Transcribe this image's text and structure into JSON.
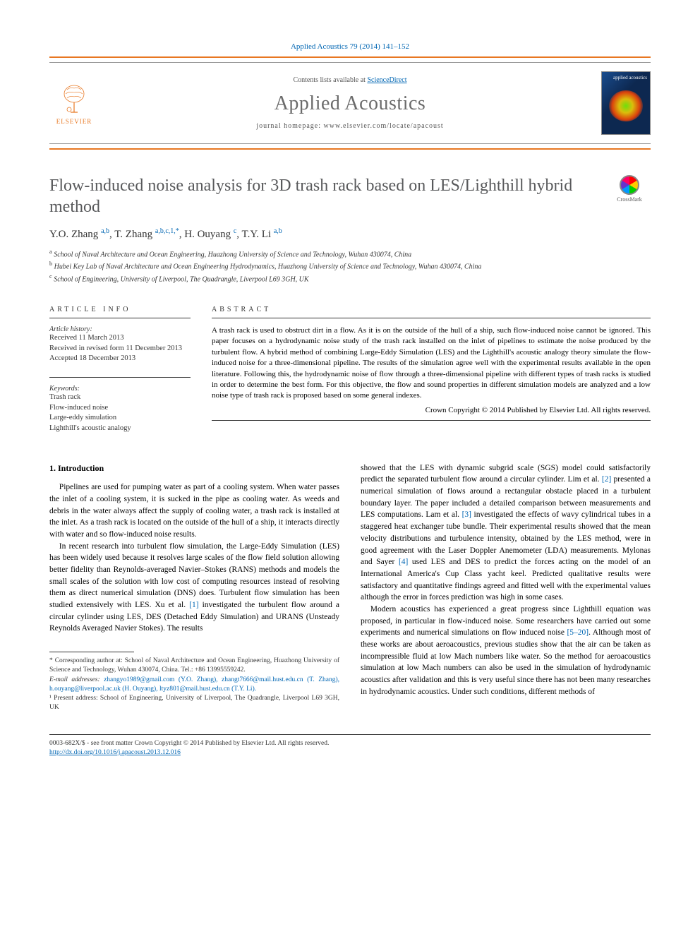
{
  "journal_ref": "Applied Acoustics 79 (2014) 141–152",
  "contents_line_prefix": "Contents lists available at ",
  "contents_line_link": "ScienceDirect",
  "journal_name": "Applied Acoustics",
  "homepage_line": "journal homepage: www.elsevier.com/locate/apacoust",
  "elsevier_label": "ELSEVIER",
  "cover_label": "applied acoustics",
  "crossmark_label": "CrossMark",
  "title": "Flow-induced noise analysis for 3D trash rack based on LES/Lighthill hybrid method",
  "authors_html": "Y.O. Zhang <sup>a,b</sup>, T. Zhang <sup>a,b,c,1,*</sup>, H. Ouyang <sup>c</sup>, T.Y. Li <sup>a,b</sup>",
  "affiliations": [
    {
      "sup": "a",
      "text": "School of Naval Architecture and Ocean Engineering, Huazhong University of Science and Technology, Wuhan 430074, China"
    },
    {
      "sup": "b",
      "text": "Hubei Key Lab of Naval Architecture and Ocean Engineering Hydrodynamics, Huazhong University of Science and Technology, Wuhan 430074, China"
    },
    {
      "sup": "c",
      "text": "School of Engineering, University of Liverpool, The Quadrangle, Liverpool L69 3GH, UK"
    }
  ],
  "info_head": "ARTICLE INFO",
  "abstract_head": "ABSTRACT",
  "history_label": "Article history:",
  "history": [
    "Received 11 March 2013",
    "Received in revised form 11 December 2013",
    "Accepted 18 December 2013"
  ],
  "keywords_label": "Keywords:",
  "keywords": [
    "Trash rack",
    "Flow-induced noise",
    "Large-eddy simulation",
    "Lighthill's acoustic analogy"
  ],
  "abstract": "A trash rack is used to obstruct dirt in a flow. As it is on the outside of the hull of a ship, such flow-induced noise cannot be ignored. This paper focuses on a hydrodynamic noise study of the trash rack installed on the inlet of pipelines to estimate the noise produced by the turbulent flow. A hybrid method of combining Large-Eddy Simulation (LES) and the Lighthill's acoustic analogy theory simulate the flow-induced noise for a three-dimensional pipeline. The results of the simulation agree well with the experimental results available in the open literature. Following this, the hydrodynamic noise of flow through a three-dimensional pipeline with different types of trash racks is studied in order to determine the best form. For this objective, the flow and sound properties in different simulation models are analyzed and a low noise type of trash rack is proposed based on some general indexes.",
  "copyright": "Crown Copyright © 2014 Published by Elsevier Ltd. All rights reserved.",
  "intro_heading": "1. Introduction",
  "left_paragraphs": [
    "Pipelines are used for pumping water as part of a cooling system. When water passes the inlet of a cooling system, it is sucked in the pipe as cooling water. As weeds and debris in the water always affect the supply of cooling water, a trash rack is installed at the inlet. As a trash rack is located on the outside of the hull of a ship, it interacts directly with water and so flow-induced noise results.",
    "In recent research into turbulent flow simulation, the Large-Eddy Simulation (LES) has been widely used because it resolves large scales of the flow field solution allowing better fidelity than Reynolds-averaged Navier–Stokes (RANS) methods and models the small scales of the solution with low cost of computing resources instead of resolving them as direct numerical simulation (DNS) does. Turbulent flow simulation has been studied extensively with LES. Xu et al. [1] investigated the turbulent flow around a circular cylinder using LES, DES (Detached Eddy Simulation) and URANS (Unsteady Reynolds Averaged Navier Stokes). The results"
  ],
  "right_paragraphs": [
    "showed that the LES with dynamic subgrid scale (SGS) model could satisfactorily predict the separated turbulent flow around a circular cylinder. Lim et al. [2] presented a numerical simulation of flows around a rectangular obstacle placed in a turbulent boundary layer. The paper included a detailed comparison between measurements and LES computations. Lam et al. [3] investigated the effects of wavy cylindrical tubes in a staggered heat exchanger tube bundle. Their experimental results showed that the mean velocity distributions and turbulence intensity, obtained by the LES method, were in good agreement with the Laser Doppler Anemometer (LDA) measurements. Mylonas and Sayer [4] used LES and DES to predict the forces acting on the model of an International America's Cup Class yacht keel. Predicted qualitative results were satisfactory and quantitative findings agreed and fitted well with the experimental values although the error in forces prediction was high in some cases.",
    "Modern acoustics has experienced a great progress since Lighthill equation was proposed, in particular in flow-induced noise. Some researchers have carried out some experiments and numerical simulations on flow induced noise [5–20]. Although most of these works are about aeroacoustics, previous studies show that the air can be taken as incompressible fluid at low Mach numbers like water. So the method for aeroacoustics simulation at low Mach numbers can also be used in the simulation of hydrodynamic acoustics after validation and this is very useful since there has not been many researches in hydrodynamic acoustics. Under such conditions, different methods of"
  ],
  "footnote_corresponding": "* Corresponding author at: School of Naval Architecture and Ocean Engineering, Huazhong University of Science and Technology, Wuhan 430074, China. Tel.: +86 13995559242.",
  "footnote_emails_label": "E-mail addresses:",
  "footnote_emails": " zhangyo1989@gmail.com (Y.O. Zhang), zhangt7666@mail.hust.edu.cn (T. Zhang), h.ouyang@liverpool.ac.uk (H. Ouyang), ltyz801@mail.hust.edu.cn (T.Y. Li).",
  "footnote_present": "¹ Present address: School of Engineering, University of Liverpool, The Quadrangle, Liverpool L69 3GH, UK",
  "bottom_line1": "0003-682X/$ - see front matter Crown Copyright © 2014 Published by Elsevier Ltd. All rights reserved.",
  "bottom_line2": "http://dx.doi.org/10.1016/j.apacoust.2013.12.016",
  "ref_links": {
    "1": "[1]",
    "2": "[2]",
    "3": "[3]",
    "4": "[4]",
    "5_20": "[5–20]"
  }
}
